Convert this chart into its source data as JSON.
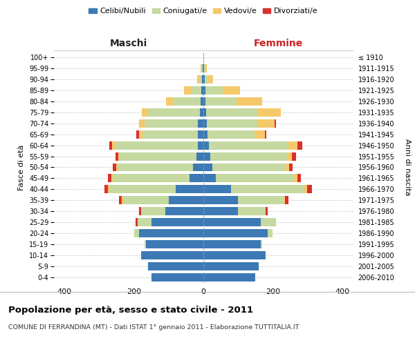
{
  "age_groups": [
    "0-4",
    "5-9",
    "10-14",
    "15-19",
    "20-24",
    "25-29",
    "30-34",
    "35-39",
    "40-44",
    "45-49",
    "50-54",
    "55-59",
    "60-64",
    "65-69",
    "70-74",
    "75-79",
    "80-84",
    "85-89",
    "90-94",
    "95-99",
    "100+"
  ],
  "birth_years": [
    "2006-2010",
    "2001-2005",
    "1996-2000",
    "1991-1995",
    "1986-1990",
    "1981-1985",
    "1976-1980",
    "1971-1975",
    "1966-1970",
    "1961-1965",
    "1956-1960",
    "1951-1955",
    "1946-1950",
    "1941-1945",
    "1936-1940",
    "1931-1935",
    "1926-1930",
    "1921-1925",
    "1916-1920",
    "1911-1915",
    "≤ 1910"
  ],
  "males": {
    "celibi": [
      150,
      160,
      180,
      165,
      185,
      150,
      110,
      100,
      80,
      40,
      30,
      20,
      15,
      15,
      15,
      10,
      8,
      5,
      3,
      2,
      0
    ],
    "coniugati": [
      0,
      0,
      0,
      5,
      15,
      40,
      70,
      130,
      190,
      220,
      215,
      220,
      240,
      160,
      155,
      150,
      80,
      30,
      8,
      3,
      0
    ],
    "vedovi": [
      0,
      0,
      0,
      0,
      0,
      0,
      0,
      5,
      5,
      5,
      5,
      5,
      8,
      10,
      15,
      18,
      20,
      20,
      6,
      2,
      0
    ],
    "divorziati": [
      0,
      0,
      0,
      0,
      0,
      5,
      5,
      8,
      10,
      10,
      10,
      8,
      8,
      8,
      0,
      0,
      0,
      0,
      0,
      0,
      0
    ]
  },
  "females": {
    "nubili": [
      150,
      160,
      180,
      165,
      185,
      165,
      100,
      100,
      80,
      35,
      25,
      20,
      15,
      12,
      10,
      8,
      5,
      5,
      3,
      2,
      0
    ],
    "coniugate": [
      0,
      0,
      0,
      5,
      15,
      45,
      80,
      130,
      210,
      225,
      210,
      220,
      230,
      135,
      145,
      150,
      90,
      50,
      10,
      3,
      0
    ],
    "vedove": [
      0,
      0,
      0,
      0,
      0,
      0,
      0,
      5,
      8,
      10,
      12,
      15,
      25,
      30,
      50,
      65,
      75,
      50,
      15,
      5,
      1
    ],
    "divorziate": [
      0,
      0,
      0,
      0,
      0,
      0,
      5,
      10,
      15,
      10,
      10,
      12,
      15,
      5,
      5,
      0,
      0,
      0,
      0,
      0,
      0
    ]
  },
  "colors": {
    "celibi": "#3d7ab5",
    "coniugati": "#c5d9a0",
    "vedovi": "#f5c96a",
    "divorziati": "#d9302e"
  },
  "title": "Popolazione per età, sesso e stato civile - 2011",
  "subtitle": "COMUNE DI FERRANDINA (MT) - Dati ISTAT 1° gennaio 2011 - Elaborazione TUTTITALIA.IT",
  "xlabel_left": "Maschi",
  "xlabel_right": "Femmine",
  "ylabel_left": "Fasce di età",
  "ylabel_right": "Anni di nascita",
  "xlim": 430,
  "legend_labels": [
    "Celibi/Nubili",
    "Coniugati/e",
    "Vedovi/e",
    "Divorziati/e"
  ],
  "background_color": "#ffffff",
  "bar_height": 0.75
}
